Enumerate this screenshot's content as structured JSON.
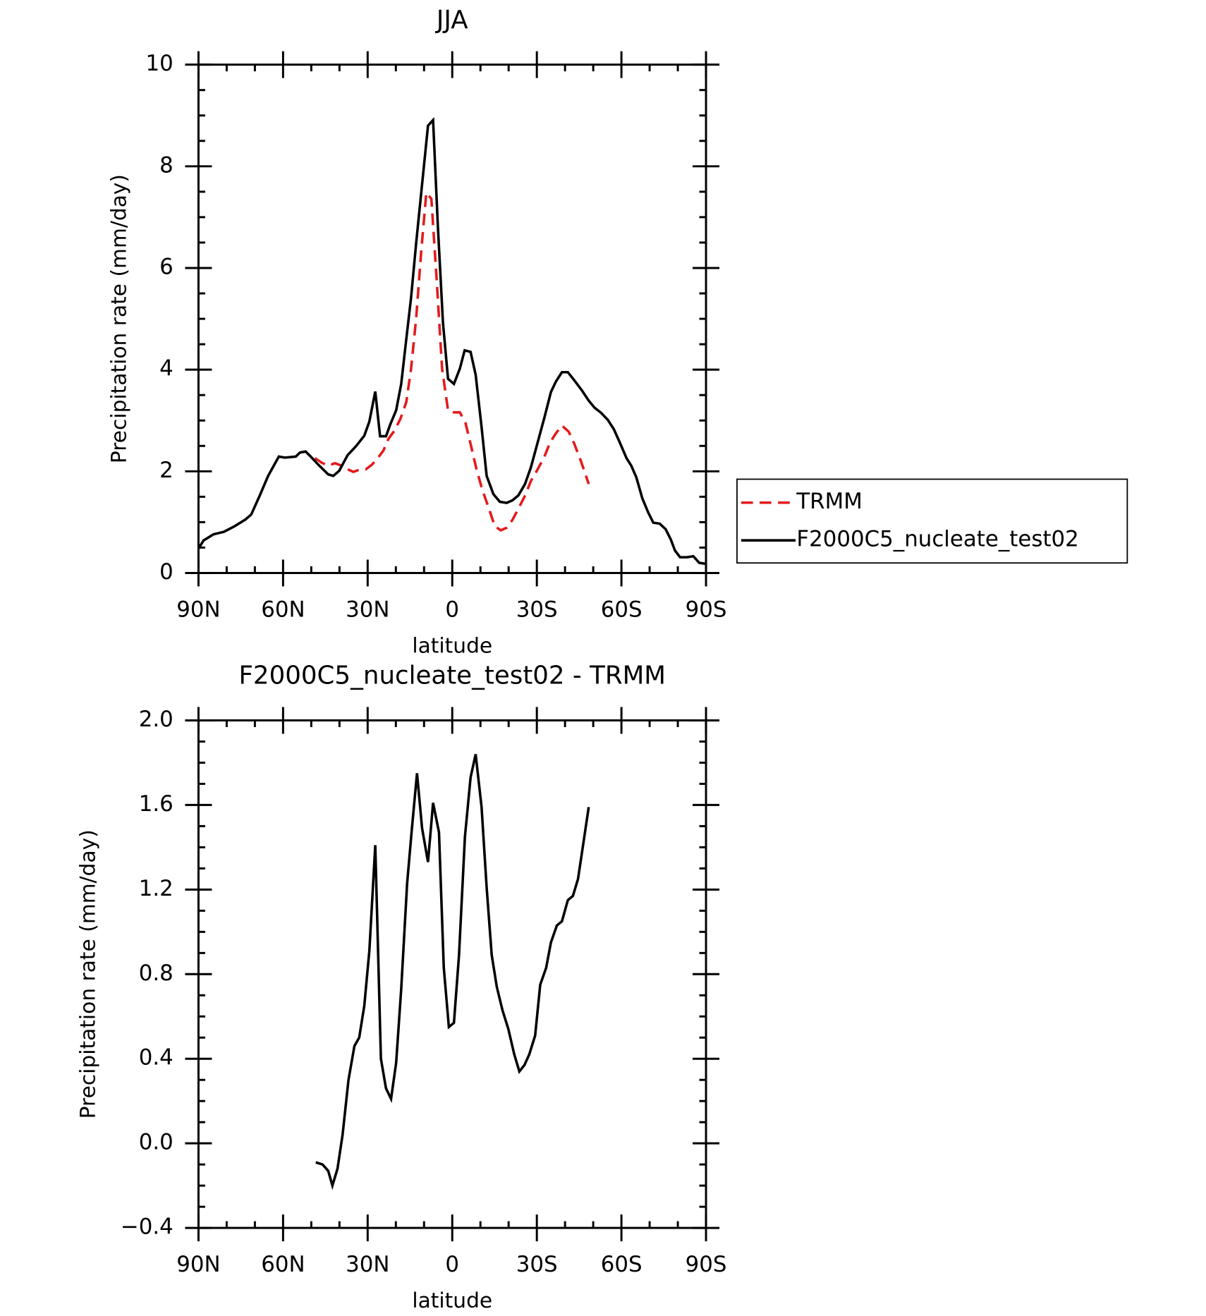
{
  "chart_data": [
    {
      "type": "line",
      "title": "JJA",
      "x_label": "latitude",
      "y_label": "Precipitation rate (mm/day)",
      "xlim": [
        90,
        -90
      ],
      "xticks": [
        {
          "value": 90,
          "label": "90N"
        },
        {
          "value": 60,
          "label": "60N"
        },
        {
          "value": 30,
          "label": "30N"
        },
        0,
        {
          "value": -30,
          "label": "30S"
        },
        {
          "value": -60,
          "label": "60S"
        },
        {
          "value": -90,
          "label": "90S"
        }
      ],
      "ylim": [
        0,
        10
      ],
      "yticks": [
        0,
        2,
        4,
        6,
        8,
        10
      ],
      "legend": "right",
      "series": [
        {
          "name": "TRMM",
          "color": "#e41a1c",
          "line_style": "dashed",
          "x": [
            48.7,
            46.3,
            44,
            41.6,
            39.2,
            37.1,
            35.1,
            33,
            30.6,
            28.5,
            26.4,
            24.4,
            22.6,
            20.5,
            18.4,
            16.3,
            14.6,
            12.8,
            11,
            9.2,
            7.4,
            5.6,
            3.6,
            1.5,
            -0.6,
            -2.7,
            -4.7,
            -6.5,
            -8.6,
            -10.7,
            -12.8,
            -15.1,
            -17.2,
            -19.3,
            -21.4,
            -23.5,
            -25.8,
            -27.9,
            -30.3,
            -32.7,
            -34.7,
            -36.8,
            -38.9,
            -41.3,
            -43.3,
            -45.7,
            -48.4
          ],
          "values": [
            2.26,
            2.17,
            2.11,
            2.16,
            2.11,
            2.04,
            1.99,
            2.03,
            2.04,
            2.13,
            2.26,
            2.41,
            2.64,
            2.8,
            3.03,
            3.36,
            4.02,
            5.01,
            6.33,
            7.48,
            7.36,
            5.83,
            4.02,
            3.2,
            3.16,
            3.16,
            2.95,
            2.54,
            2.04,
            1.63,
            1.3,
            0.92,
            0.84,
            0.89,
            1.05,
            1.27,
            1.52,
            1.81,
            2.04,
            2.29,
            2.57,
            2.75,
            2.9,
            2.78,
            2.54,
            2.19,
            1.75
          ]
        },
        {
          "name": "F2000C5_nucleate_test02",
          "color": "#000000",
          "line_style": "solid",
          "x": [
            90,
            88.2,
            84.7,
            81,
            77.2,
            73.4,
            71.3,
            68.3,
            65.3,
            61.5,
            59.4,
            55.5,
            54,
            52,
            50.2,
            47.5,
            44,
            42.2,
            40.1,
            37.1,
            34.2,
            31.2,
            29.4,
            27.3,
            25.6,
            23.5,
            22,
            19.9,
            18.1,
            16.3,
            14.6,
            12.8,
            11,
            8.6,
            6.8,
            5.1,
            3.3,
            1.5,
            -0.6,
            -2.7,
            -4.4,
            -6.5,
            -8.3,
            -10.4,
            -12.2,
            -14.6,
            -16.9,
            -19.3,
            -21.4,
            -23.5,
            -25.8,
            -27.9,
            -30.3,
            -32.7,
            -35,
            -36.8,
            -38.9,
            -41,
            -43.3,
            -46,
            -48.4,
            -50.5,
            -52.8,
            -55.2,
            -57.3,
            -59.4,
            -61.8,
            -63.5,
            -65.3,
            -67.4,
            -69.5,
            -71.3,
            -73.6,
            -75.7,
            -77.5,
            -79,
            -80.8,
            -83.2,
            -85.5,
            -87.6,
            -90
          ],
          "values": [
            0.48,
            0.64,
            0.76,
            0.81,
            0.92,
            1.05,
            1.15,
            1.52,
            1.91,
            2.29,
            2.27,
            2.29,
            2.37,
            2.39,
            2.29,
            2.13,
            1.94,
            1.91,
            2.01,
            2.32,
            2.49,
            2.7,
            2.98,
            3.57,
            2.69,
            2.69,
            2.92,
            3.2,
            3.72,
            4.6,
            5.42,
            6.49,
            7.48,
            8.8,
            8.91,
            6.82,
            4.93,
            3.82,
            3.72,
            4.02,
            4.38,
            4.35,
            3.9,
            2.87,
            1.91,
            1.55,
            1.4,
            1.38,
            1.43,
            1.53,
            1.75,
            2.08,
            2.57,
            3.06,
            3.56,
            3.77,
            3.95,
            3.95,
            3.79,
            3.59,
            3.39,
            3.25,
            3.15,
            3.01,
            2.83,
            2.57,
            2.26,
            2.11,
            1.88,
            1.47,
            1.19,
            0.99,
            0.97,
            0.86,
            0.66,
            0.44,
            0.31,
            0.31,
            0.33,
            0.2,
            0.18
          ]
        }
      ]
    },
    {
      "type": "line",
      "title": "F2000C5_nucleate_test02 - TRMM",
      "x_label": "latitude",
      "y_label": "Precipitation rate (mm/day)",
      "xlim": [
        90,
        -90
      ],
      "xticks": [
        {
          "value": 90,
          "label": "90N"
        },
        {
          "value": 60,
          "label": "60N"
        },
        {
          "value": 30,
          "label": "30N"
        },
        0,
        {
          "value": -30,
          "label": "30S"
        },
        {
          "value": -60,
          "label": "60S"
        },
        {
          "value": -90,
          "label": "90S"
        }
      ],
      "ylim": [
        -0.4,
        2
      ],
      "yticks": [
        {
          "value": -0.4,
          "label": "−0.4"
        },
        {
          "value": 0,
          "label": "0.0"
        },
        0.4,
        0.8,
        1.2,
        1.6,
        {
          "value": 2,
          "label": "2.0"
        }
      ],
      "series": [
        {
          "color": "#000000",
          "line_style": "solid",
          "x": [
            48.4,
            46,
            44,
            42.5,
            40.7,
            38.9,
            36.8,
            34.7,
            33,
            31.2,
            29.4,
            27.3,
            25.3,
            23.5,
            21.7,
            19.9,
            18.1,
            16,
            14.3,
            12.5,
            10.7,
            8.6,
            6.8,
            4.7,
            3,
            1.2,
            -0.6,
            -2.4,
            -4.5,
            -6.5,
            -8.3,
            -10.4,
            -12.2,
            -14,
            -15.8,
            -17.8,
            -19.9,
            -22,
            -23.8,
            -25.6,
            -27.3,
            -29.4,
            -31.2,
            -33.3,
            -35,
            -37.1,
            -38.9,
            -41,
            -42.8,
            -44.6,
            -46.4,
            -48.4
          ],
          "values": [
            -0.09,
            -0.1,
            -0.13,
            -0.2,
            -0.12,
            0.04,
            0.3,
            0.46,
            0.5,
            0.65,
            0.91,
            1.41,
            0.4,
            0.26,
            0.21,
            0.38,
            0.73,
            1.23,
            1.49,
            1.75,
            1.49,
            1.33,
            1.61,
            1.47,
            0.83,
            0.55,
            0.57,
            0.89,
            1.45,
            1.73,
            1.84,
            1.59,
            1.21,
            0.89,
            0.74,
            0.63,
            0.54,
            0.42,
            0.34,
            0.37,
            0.42,
            0.51,
            0.75,
            0.83,
            0.95,
            1.03,
            1.05,
            1.15,
            1.17,
            1.25,
            1.41,
            1.59
          ]
        }
      ]
    }
  ]
}
